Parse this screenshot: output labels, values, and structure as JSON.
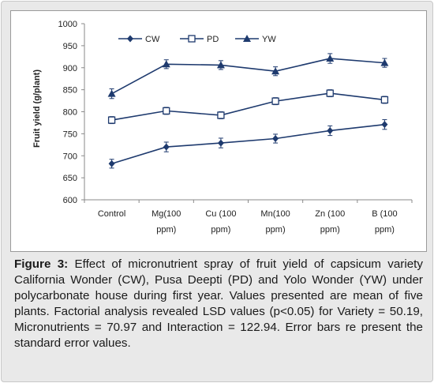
{
  "figure": {
    "caption_label": "Figure 3:",
    "caption_text": " Effect of micronutrient spray of fruit yield of capsicum variety California Wonder (CW), Pusa Deepti (PD) and Yolo Wonder (YW) under polycarbonate house during first year. Values presented are mean of five plants. Factorial analysis revealed LSD values (p<0.05) for Variety = 50.19, Micronutrients = 70.97 and Interaction = 122.94. Error bars re present the standard error values."
  },
  "chart_data": {
    "type": "line",
    "title": "",
    "xlabel": "",
    "ylabel": "Fruit yield (g/plant)",
    "categories": [
      [
        "Control"
      ],
      [
        "Mg(100",
        "ppm)"
      ],
      [
        "Cu (100",
        "ppm)"
      ],
      [
        "Mn(100",
        "ppm)"
      ],
      [
        "Zn (100",
        "ppm)"
      ],
      [
        "B (100",
        "ppm)"
      ]
    ],
    "ylim": [
      600,
      1000
    ],
    "yticks": [
      600,
      650,
      700,
      750,
      800,
      850,
      900,
      950,
      1000
    ],
    "grid": false,
    "legend_position": "top",
    "error_bars": "standard error",
    "series": [
      {
        "name": "CW",
        "marker": "diamond",
        "values": [
          682,
          720,
          729,
          739,
          757,
          771
        ],
        "errors": [
          10,
          11,
          11,
          10,
          11,
          11
        ]
      },
      {
        "name": "PD",
        "marker": "square",
        "values": [
          781,
          802,
          792,
          824,
          842,
          827
        ],
        "errors": [
          8,
          8,
          8,
          8,
          8,
          8
        ]
      },
      {
        "name": "YW",
        "marker": "triangle",
        "values": [
          841,
          908,
          906,
          892,
          921,
          911
        ],
        "errors": [
          11,
          10,
          10,
          10,
          11,
          10
        ]
      }
    ],
    "line_color": "#1e3a6e"
  }
}
